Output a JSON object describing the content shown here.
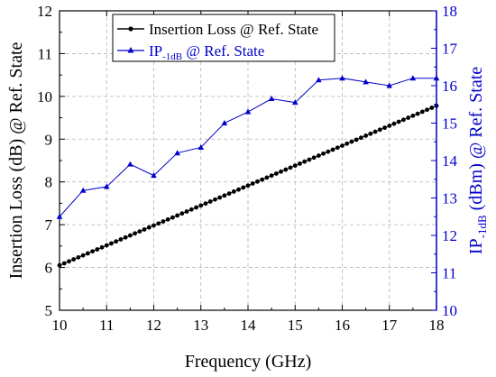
{
  "chart_data": {
    "type": "line",
    "xlabel": "Frequency (GHz)",
    "ylabel_left": "Insertion Loss (dB) @ Ref. State",
    "ylabel_right": {
      "prefix": "IP",
      "sub": "-1dB",
      "suffix": " (dBm) @ Ref. State"
    },
    "xlim": [
      10,
      18
    ],
    "ylim_left": [
      5,
      12
    ],
    "ylim_right": [
      10,
      18
    ],
    "x_ticks": [
      "10",
      "11",
      "12",
      "13",
      "14",
      "15",
      "16",
      "17",
      "18"
    ],
    "y_left_ticks": [
      "5",
      "6",
      "7",
      "8",
      "9",
      "10",
      "11",
      "12"
    ],
    "y_right_ticks": [
      "10",
      "11",
      "12",
      "13",
      "14",
      "15",
      "16",
      "17",
      "18"
    ],
    "grid": true,
    "legend_position": "top-left",
    "colors": {
      "insertion_loss": "#000000",
      "ip1db": "#0000cc",
      "right_axis": "#0000cc",
      "grid": "#b4b4b4"
    },
    "series": [
      {
        "name": "Insertion Loss @ Ref. State",
        "axis": "left",
        "marker": "circle",
        "x_start": 10,
        "x_end": 18,
        "x_step": 0.1,
        "y_start": 6.05,
        "y_end": 9.78
      },
      {
        "name_prefix": "IP",
        "name_sub": "-1dB",
        "name_suffix": " @ Ref. State",
        "axis": "right",
        "marker": "triangle",
        "x": [
          10,
          10.5,
          11,
          11.5,
          12,
          12.5,
          13,
          13.5,
          14,
          14.5,
          15,
          15.5,
          16,
          16.5,
          17,
          17.5,
          18
        ],
        "y": [
          12.5,
          13.2,
          13.3,
          13.9,
          13.6,
          14.2,
          14.35,
          15.0,
          15.3,
          15.65,
          15.55,
          16.15,
          16.2,
          16.1,
          16.0,
          16.2,
          16.2
        ]
      }
    ]
  }
}
